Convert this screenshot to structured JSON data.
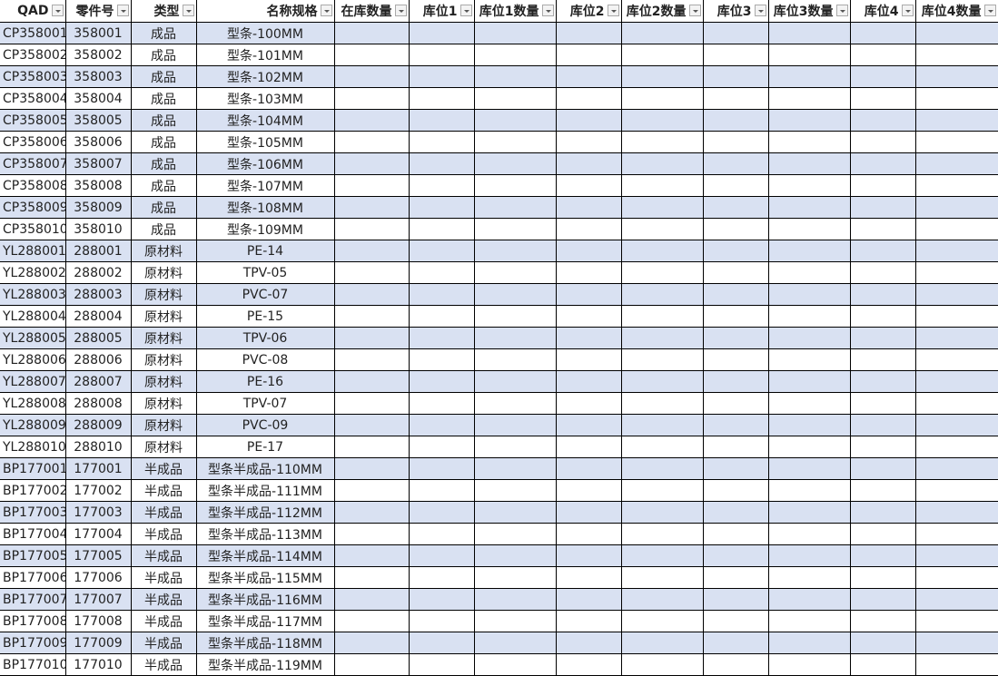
{
  "colors": {
    "band": "#d9e1f2",
    "grid": "#000000"
  },
  "headers": [
    "QAD",
    "零件号",
    "类型",
    "名称规格",
    "在库数量",
    "库位1",
    "库位1数量",
    "库位2",
    "库位2数量",
    "库位3",
    "库位3数量",
    "库位4",
    "库位4数量"
  ],
  "rows": [
    [
      "CP358001",
      "358001",
      "成品",
      "型条-100MM"
    ],
    [
      "CP358002",
      "358002",
      "成品",
      "型条-101MM"
    ],
    [
      "CP358003",
      "358003",
      "成品",
      "型条-102MM"
    ],
    [
      "CP358004",
      "358004",
      "成品",
      "型条-103MM"
    ],
    [
      "CP358005",
      "358005",
      "成品",
      "型条-104MM"
    ],
    [
      "CP358006",
      "358006",
      "成品",
      "型条-105MM"
    ],
    [
      "CP358007",
      "358007",
      "成品",
      "型条-106MM"
    ],
    [
      "CP358008",
      "358008",
      "成品",
      "型条-107MM"
    ],
    [
      "CP358009",
      "358009",
      "成品",
      "型条-108MM"
    ],
    [
      "CP358010",
      "358010",
      "成品",
      "型条-109MM"
    ],
    [
      "YL288001",
      "288001",
      "原材料",
      "PE-14"
    ],
    [
      "YL288002",
      "288002",
      "原材料",
      "TPV-05"
    ],
    [
      "YL288003",
      "288003",
      "原材料",
      "PVC-07"
    ],
    [
      "YL288004",
      "288004",
      "原材料",
      "PE-15"
    ],
    [
      "YL288005",
      "288005",
      "原材料",
      "TPV-06"
    ],
    [
      "YL288006",
      "288006",
      "原材料",
      "PVC-08"
    ],
    [
      "YL288007",
      "288007",
      "原材料",
      "PE-16"
    ],
    [
      "YL288008",
      "288008",
      "原材料",
      "TPV-07"
    ],
    [
      "YL288009",
      "288009",
      "原材料",
      "PVC-09"
    ],
    [
      "YL288010",
      "288010",
      "原材料",
      "PE-17"
    ],
    [
      "BP177001",
      "177001",
      "半成品",
      "型条半成品-110MM"
    ],
    [
      "BP177002",
      "177002",
      "半成品",
      "型条半成品-111MM"
    ],
    [
      "BP177003",
      "177003",
      "半成品",
      "型条半成品-112MM"
    ],
    [
      "BP177004",
      "177004",
      "半成品",
      "型条半成品-113MM"
    ],
    [
      "BP177005",
      "177005",
      "半成品",
      "型条半成品-114MM"
    ],
    [
      "BP177006",
      "177006",
      "半成品",
      "型条半成品-115MM"
    ],
    [
      "BP177007",
      "177007",
      "半成品",
      "型条半成品-116MM"
    ],
    [
      "BP177008",
      "177008",
      "半成品",
      "型条半成品-117MM"
    ],
    [
      "BP177009",
      "177009",
      "半成品",
      "型条半成品-118MM"
    ],
    [
      "BP177010",
      "177010",
      "半成品",
      "型条半成品-119MM"
    ]
  ]
}
